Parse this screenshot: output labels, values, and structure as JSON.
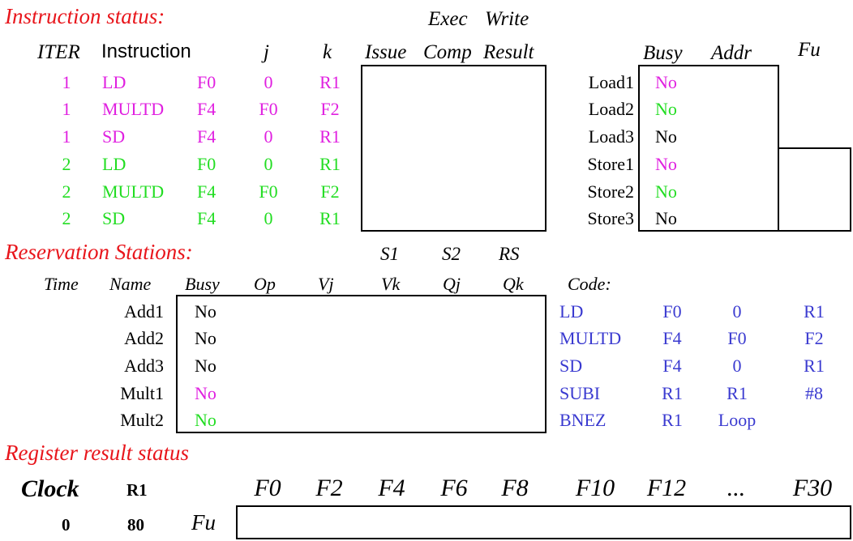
{
  "colors": {
    "heading": "#e8151b",
    "iter1": "#e020e0",
    "iter2": "#22dd22",
    "code": "#3a3ad0",
    "normal": "#000000"
  },
  "instr": {
    "heading": "Instruction status:",
    "exec_label": "Exec",
    "write_label": "Write",
    "headers": {
      "iter": "ITER",
      "instruction": "Instruction",
      "j": "j",
      "k": "k",
      "issue": "Issue",
      "comp": "Comp",
      "result": "Result"
    },
    "rows": [
      {
        "iter": "1",
        "op": "LD",
        "dest": "F0",
        "j": "0",
        "k": "R1",
        "color": "#e020e0"
      },
      {
        "iter": "1",
        "op": "MULTD",
        "dest": "F4",
        "j": "F0",
        "k": "F2",
        "color": "#e020e0"
      },
      {
        "iter": "1",
        "op": "SD",
        "dest": "F4",
        "j": "0",
        "k": "R1",
        "color": "#e020e0"
      },
      {
        "iter": "2",
        "op": "LD",
        "dest": "F0",
        "j": "0",
        "k": "R1",
        "color": "#22dd22"
      },
      {
        "iter": "2",
        "op": "MULTD",
        "dest": "F4",
        "j": "F0",
        "k": "F2",
        "color": "#22dd22"
      },
      {
        "iter": "2",
        "op": "SD",
        "dest": "F4",
        "j": "0",
        "k": "R1",
        "color": "#22dd22"
      }
    ]
  },
  "loadstore": {
    "headers": {
      "busy": "Busy",
      "addr": "Addr",
      "fu": "Fu"
    },
    "rows": [
      {
        "name": "Load1",
        "busy": "No",
        "color": "#e020e0"
      },
      {
        "name": "Load2",
        "busy": "No",
        "color": "#22dd22"
      },
      {
        "name": "Load3",
        "busy": "No",
        "color": "#000000"
      },
      {
        "name": "Store1",
        "busy": "No",
        "color": "#e020e0"
      },
      {
        "name": "Store2",
        "busy": "No",
        "color": "#22dd22"
      },
      {
        "name": "Store3",
        "busy": "No",
        "color": "#000000"
      }
    ]
  },
  "rs": {
    "heading": "Reservation Stations:",
    "upper_headers": {
      "s1": "S1",
      "s2": "S2",
      "rs": "RS"
    },
    "headers": {
      "time": "Time",
      "name": "Name",
      "busy": "Busy",
      "op": "Op",
      "vj": "Vj",
      "vk": "Vk",
      "qj": "Qj",
      "qk": "Qk",
      "code": "Code:"
    },
    "rows": [
      {
        "name": "Add1",
        "busy": "No",
        "color": "#000000"
      },
      {
        "name": "Add2",
        "busy": "No",
        "color": "#000000"
      },
      {
        "name": "Add3",
        "busy": "No",
        "color": "#000000"
      },
      {
        "name": "Mult1",
        "busy": "No",
        "color": "#e020e0"
      },
      {
        "name": "Mult2",
        "busy": "No",
        "color": "#22dd22"
      }
    ],
    "code": [
      [
        "LD",
        "F0",
        "0",
        "R1"
      ],
      [
        "MULTD",
        "F4",
        "F0",
        "F2"
      ],
      [
        "SD",
        "F4",
        "0",
        "R1"
      ],
      [
        "SUBI",
        "R1",
        "R1",
        "#8"
      ],
      [
        "BNEZ",
        "R1",
        "Loop",
        ""
      ]
    ]
  },
  "regs": {
    "heading": "Register result status",
    "clock_label": "Clock",
    "r1_label": "R1",
    "clock_value": "0",
    "r1_value": "80",
    "fu_label": "Fu",
    "names": [
      "F0",
      "F2",
      "F4",
      "F6",
      "F8",
      "F10",
      "F12",
      "...",
      "F30"
    ]
  }
}
